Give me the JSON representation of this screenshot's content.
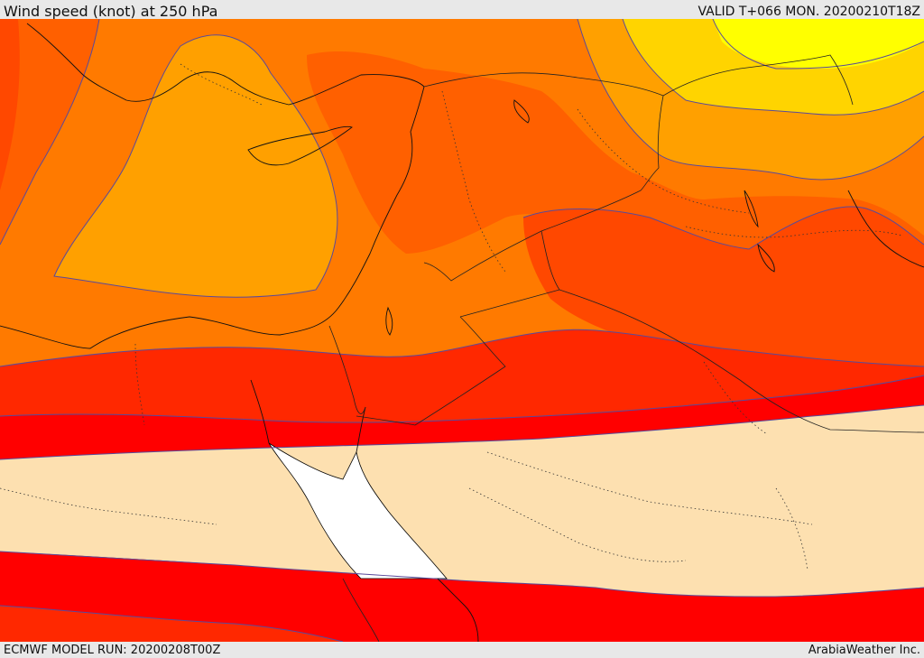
{
  "header": {
    "title": "Wind speed (knot) at 250 hPa",
    "valid": "VALID T+066 MON. 20200210T18Z"
  },
  "footer": {
    "model_run": "ECMWF MODEL RUN: 20200208T00Z",
    "credit": "ArabiaWeather Inc."
  },
  "colors": {
    "yellow": "#ffff00",
    "light_orange": "#ffd400",
    "amber": "#ffa000",
    "orange": "#ff7a00",
    "dark_orange": "#ff6000",
    "red_orange": "#ff4800",
    "orange_red": "#ff2800",
    "red": "#ff0000",
    "calm": "#fde0b0",
    "contour": "#5a4a9a"
  },
  "icons": [
    "coastline",
    "country-border"
  ]
}
